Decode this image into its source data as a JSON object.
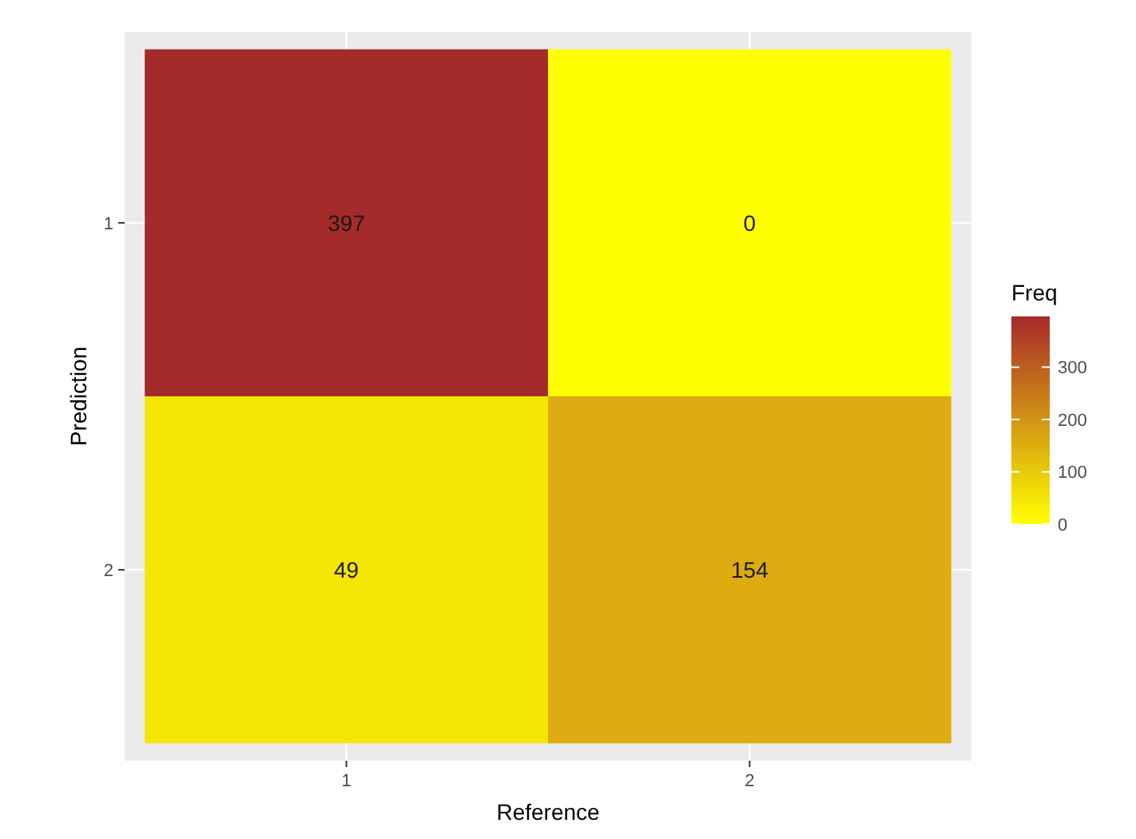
{
  "chart_data": {
    "type": "heatmap",
    "xlabel": "Reference",
    "ylabel": "Prediction",
    "legend_title": "Freq",
    "categories": [
      "1",
      "2"
    ],
    "y_categories": [
      "1",
      "2"
    ],
    "cells": [
      [
        397,
        0
      ],
      [
        49,
        154
      ]
    ],
    "clim": [
      0,
      397
    ],
    "cticks": [
      0,
      100,
      200,
      300
    ],
    "colors": [
      "#ffff00",
      "#a52a2a"
    ],
    "data_labels": true,
    "grid": true
  }
}
